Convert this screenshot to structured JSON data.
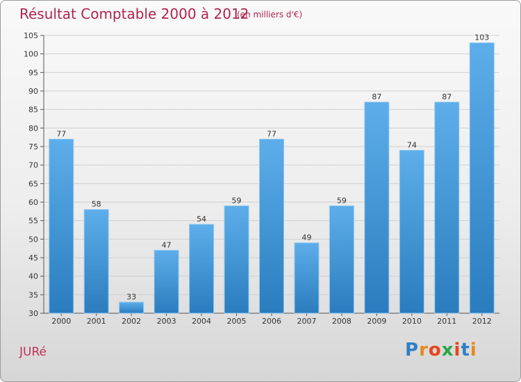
{
  "title": "Résultat Comptable 2000 à 2012",
  "subtitle": "(en milliers d'€)",
  "commune": "JURé",
  "logo": {
    "letters": [
      "P",
      "r",
      "o",
      "x",
      "i",
      "t",
      "i"
    ],
    "colors": [
      "#2f7fc8",
      "#e88a1a",
      "#e8441a",
      "#2aa74a",
      "#e8441a",
      "#2f7fc8",
      "#e88a1a"
    ]
  },
  "colors": {
    "bar": "#3b93d6",
    "bar_light": "#5aacea",
    "bar_dark": "#2a7cbd",
    "grid": "#cfcfcf",
    "title": "#b0244c"
  },
  "chart_data": {
    "type": "bar",
    "title": "Résultat Comptable 2000 à 2012",
    "subtitle": "(en milliers d'€)",
    "xlabel": "",
    "ylabel": "",
    "categories": [
      "2000",
      "2001",
      "2002",
      "2003",
      "2004",
      "2005",
      "2006",
      "2007",
      "2008",
      "2009",
      "2010",
      "2011",
      "2012"
    ],
    "values": [
      77,
      58,
      33,
      47,
      54,
      59,
      77,
      49,
      59,
      87,
      74,
      87,
      103
    ],
    "ylim": [
      30,
      105
    ],
    "yticks": [
      30,
      35,
      40,
      45,
      50,
      55,
      60,
      65,
      70,
      75,
      80,
      85,
      90,
      95,
      100,
      105
    ],
    "grid": true
  }
}
